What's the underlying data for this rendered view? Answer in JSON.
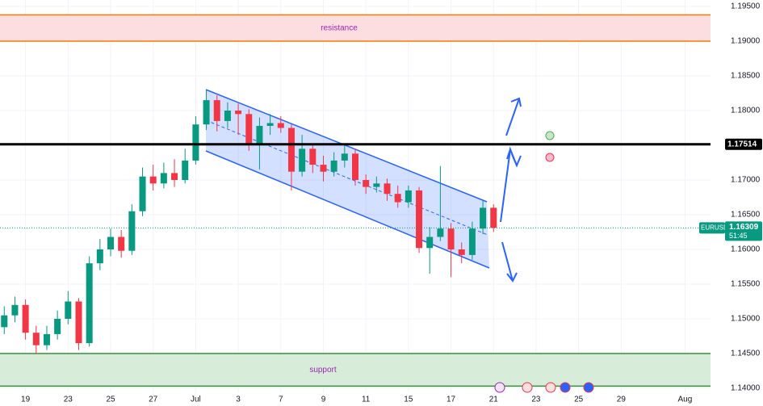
{
  "chart_data": {
    "type": "candlestick",
    "symbol": "EURUSD",
    "countdown": "51:45",
    "x": [
      -1,
      -0.5,
      0,
      0.5,
      1,
      1.5,
      2,
      2.5,
      3,
      3.5,
      4,
      4.5,
      5,
      5.5,
      6,
      6.5,
      7,
      7.5,
      8,
      8.5,
      9,
      9.5,
      10,
      10.5,
      11,
      11.5,
      12,
      12.5,
      13,
      13.5,
      14,
      14.5,
      15,
      15.5,
      16,
      16.5,
      17,
      17.5,
      18,
      18.5,
      19,
      19.5,
      20,
      20.5,
      21,
      21.5,
      22
    ],
    "open": [
      1.1488,
      1.1505,
      1.152,
      1.148,
      1.1462,
      1.1478,
      1.15,
      1.1525,
      1.1465,
      1.158,
      1.16,
      1.1618,
      1.1598,
      1.1655,
      1.1705,
      1.1695,
      1.171,
      1.17,
      1.1728,
      1.178,
      1.1815,
      1.1785,
      1.18,
      1.1795,
      1.1752,
      1.1778,
      1.1782,
      1.1775,
      1.1712,
      1.1745,
      1.1722,
      1.1712,
      1.1728,
      1.1738,
      1.17,
      1.169,
      1.1695,
      1.168,
      1.1668,
      1.1685,
      1.1602,
      1.1618,
      1.163,
      1.16,
      1.1592,
      1.163,
      1.166
    ],
    "high": [
      1.1518,
      1.1532,
      1.1528,
      1.149,
      1.149,
      1.1512,
      1.154,
      1.153,
      1.159,
      1.1615,
      1.163,
      1.1628,
      1.1665,
      1.1718,
      1.1722,
      1.1725,
      1.173,
      1.1745,
      1.1792,
      1.183,
      1.1822,
      1.1812,
      1.181,
      1.1802,
      1.179,
      1.1795,
      1.1792,
      1.178,
      1.1765,
      1.1752,
      1.1735,
      1.174,
      1.1752,
      1.1745,
      1.1708,
      1.1705,
      1.1702,
      1.1692,
      1.1692,
      1.169,
      1.1632,
      1.172,
      1.1638,
      1.161,
      1.164,
      1.1672,
      1.1665
    ],
    "low": [
      1.1478,
      1.1495,
      1.147,
      1.145,
      1.1455,
      1.147,
      1.1492,
      1.1455,
      1.146,
      1.157,
      1.159,
      1.1588,
      1.1592,
      1.1648,
      1.1685,
      1.1688,
      1.169,
      1.1695,
      1.1722,
      1.1772,
      1.177,
      1.1775,
      1.1765,
      1.1742,
      1.1715,
      1.1765,
      1.1768,
      1.1685,
      1.1705,
      1.171,
      1.1698,
      1.1705,
      1.1718,
      1.1692,
      1.168,
      1.1682,
      1.167,
      1.166,
      1.166,
      1.1595,
      1.1565,
      1.1612,
      1.156,
      1.158,
      1.1585,
      1.1622,
      1.1625
    ],
    "close": [
      1.1505,
      1.152,
      1.148,
      1.1462,
      1.1478,
      1.15,
      1.1525,
      1.1465,
      1.158,
      1.16,
      1.1618,
      1.1598,
      1.1655,
      1.1705,
      1.1695,
      1.171,
      1.17,
      1.1728,
      1.178,
      1.1815,
      1.1785,
      1.18,
      1.1795,
      1.1752,
      1.1778,
      1.1782,
      1.1775,
      1.1712,
      1.1745,
      1.1722,
      1.1712,
      1.1728,
      1.1738,
      1.17,
      1.169,
      1.1695,
      1.168,
      1.1668,
      1.1685,
      1.1602,
      1.1618,
      1.163,
      1.16,
      1.1592,
      1.163,
      1.166,
      1.1631
    ],
    "up_color": "#089981",
    "down_color": "#f23645",
    "ylim": [
      1.14,
      1.195
    ],
    "yticks": [
      {
        "value": 1.14,
        "label": "1.14000"
      },
      {
        "value": 1.145,
        "label": "1.14500"
      },
      {
        "value": 1.15,
        "label": "1.15000"
      },
      {
        "value": 1.155,
        "label": "1.15500"
      },
      {
        "value": 1.16,
        "label": "1.16000"
      },
      {
        "value": 1.165,
        "label": "1.16500"
      },
      {
        "value": 1.17,
        "label": "1.17000"
      },
      {
        "value": 1.175,
        "label": "1.17500"
      },
      {
        "value": 1.18,
        "label": "1.18000"
      },
      {
        "value": 1.185,
        "label": "1.18500"
      },
      {
        "value": 1.19,
        "label": "1.19000"
      },
      {
        "value": 1.195,
        "label": "1.19500"
      }
    ],
    "xlim": [
      -1.2,
      32.2
    ],
    "xticks": [
      {
        "value": 0,
        "label": "19"
      },
      {
        "value": 2,
        "label": "23"
      },
      {
        "value": 4,
        "label": "25"
      },
      {
        "value": 6,
        "label": "27"
      },
      {
        "value": 8,
        "label": "Jul"
      },
      {
        "value": 10,
        "label": "3"
      },
      {
        "value": 12,
        "label": "7"
      },
      {
        "value": 14,
        "label": "9"
      },
      {
        "value": 16,
        "label": "11"
      },
      {
        "value": 18,
        "label": "15"
      },
      {
        "value": 20,
        "label": "17"
      },
      {
        "value": 22,
        "label": "21"
      },
      {
        "value": 24,
        "label": "23"
      },
      {
        "value": 26,
        "label": "25"
      },
      {
        "value": 28,
        "label": "29"
      },
      {
        "value": 31,
        "label": "Aug"
      }
    ],
    "grid": true,
    "zones": [
      {
        "label": "resistance",
        "range": [
          1.19,
          1.1938
        ],
        "color": "#f57c00",
        "fill": "#fcdde0"
      },
      {
        "label": "support",
        "range": [
          1.1403,
          1.145
        ],
        "color": "#388e3c",
        "fill": "#d8ecda"
      }
    ],
    "level": 1.17514,
    "last_price": 1.16309
  }
}
